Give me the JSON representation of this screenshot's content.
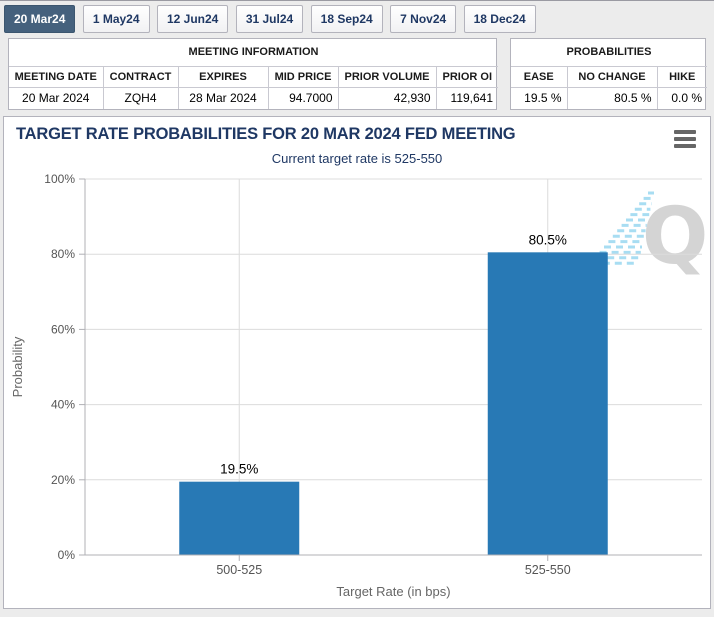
{
  "tabs": [
    {
      "label": "20 Mar24",
      "selected": true
    },
    {
      "label": "1 May24",
      "selected": false
    },
    {
      "label": "12 Jun24",
      "selected": false
    },
    {
      "label": "31 Jul24",
      "selected": false
    },
    {
      "label": "18 Sep24",
      "selected": false
    },
    {
      "label": "7 Nov24",
      "selected": false
    },
    {
      "label": "18 Dec24",
      "selected": false
    }
  ],
  "meeting_info": {
    "title": "MEETING INFORMATION",
    "columns": [
      "MEETING DATE",
      "CONTRACT",
      "EXPIRES",
      "MID PRICE",
      "PRIOR VOLUME",
      "PRIOR OI"
    ],
    "values": [
      "20 Mar 2024",
      "ZQH4",
      "28 Mar 2024",
      "94.7000",
      "42,930",
      "119,641"
    ]
  },
  "probabilities": {
    "title": "PROBABILITIES",
    "columns": [
      "EASE",
      "NO CHANGE",
      "HIKE"
    ],
    "values": [
      "19.5 %",
      "80.5 %",
      "0.0 %"
    ]
  },
  "chart": {
    "title": "TARGET RATE PROBABILITIES FOR 20 MAR 2024 FED MEETING",
    "subtitle": "Current target rate is 525-550",
    "menu_icon": "hamburger-icon",
    "watermark_letter": "Q"
  },
  "chart_data": {
    "type": "bar",
    "categories": [
      "500-525",
      "525-550"
    ],
    "values": [
      19.5,
      80.5
    ],
    "value_labels": [
      "19.5%",
      "80.5%"
    ],
    "title": "TARGET RATE PROBABILITIES FOR 20 MAR 2024 FED MEETING",
    "subtitle": "Current target rate is 525-550",
    "xlabel": "Target Rate (in bps)",
    "ylabel": "Probability",
    "ylim": [
      0,
      100
    ],
    "ytick_step": 20,
    "ytick_labels": [
      "0%",
      "20%",
      "40%",
      "60%",
      "80%",
      "100%"
    ],
    "grid": true,
    "legend": false,
    "bar_color": "#2879b5"
  },
  "colors": {
    "accent_navy": "#1f3864",
    "selected_tab_bg": "#45617d",
    "bar_blue": "#2879b5",
    "grid_line": "#dcdcdc",
    "axis_line": "#b0b0b5",
    "tick_text": "#555555",
    "axis_title_text": "#666666",
    "watermark_gray": "#d4d4d4",
    "watermark_blue": "#a8ddf2"
  }
}
